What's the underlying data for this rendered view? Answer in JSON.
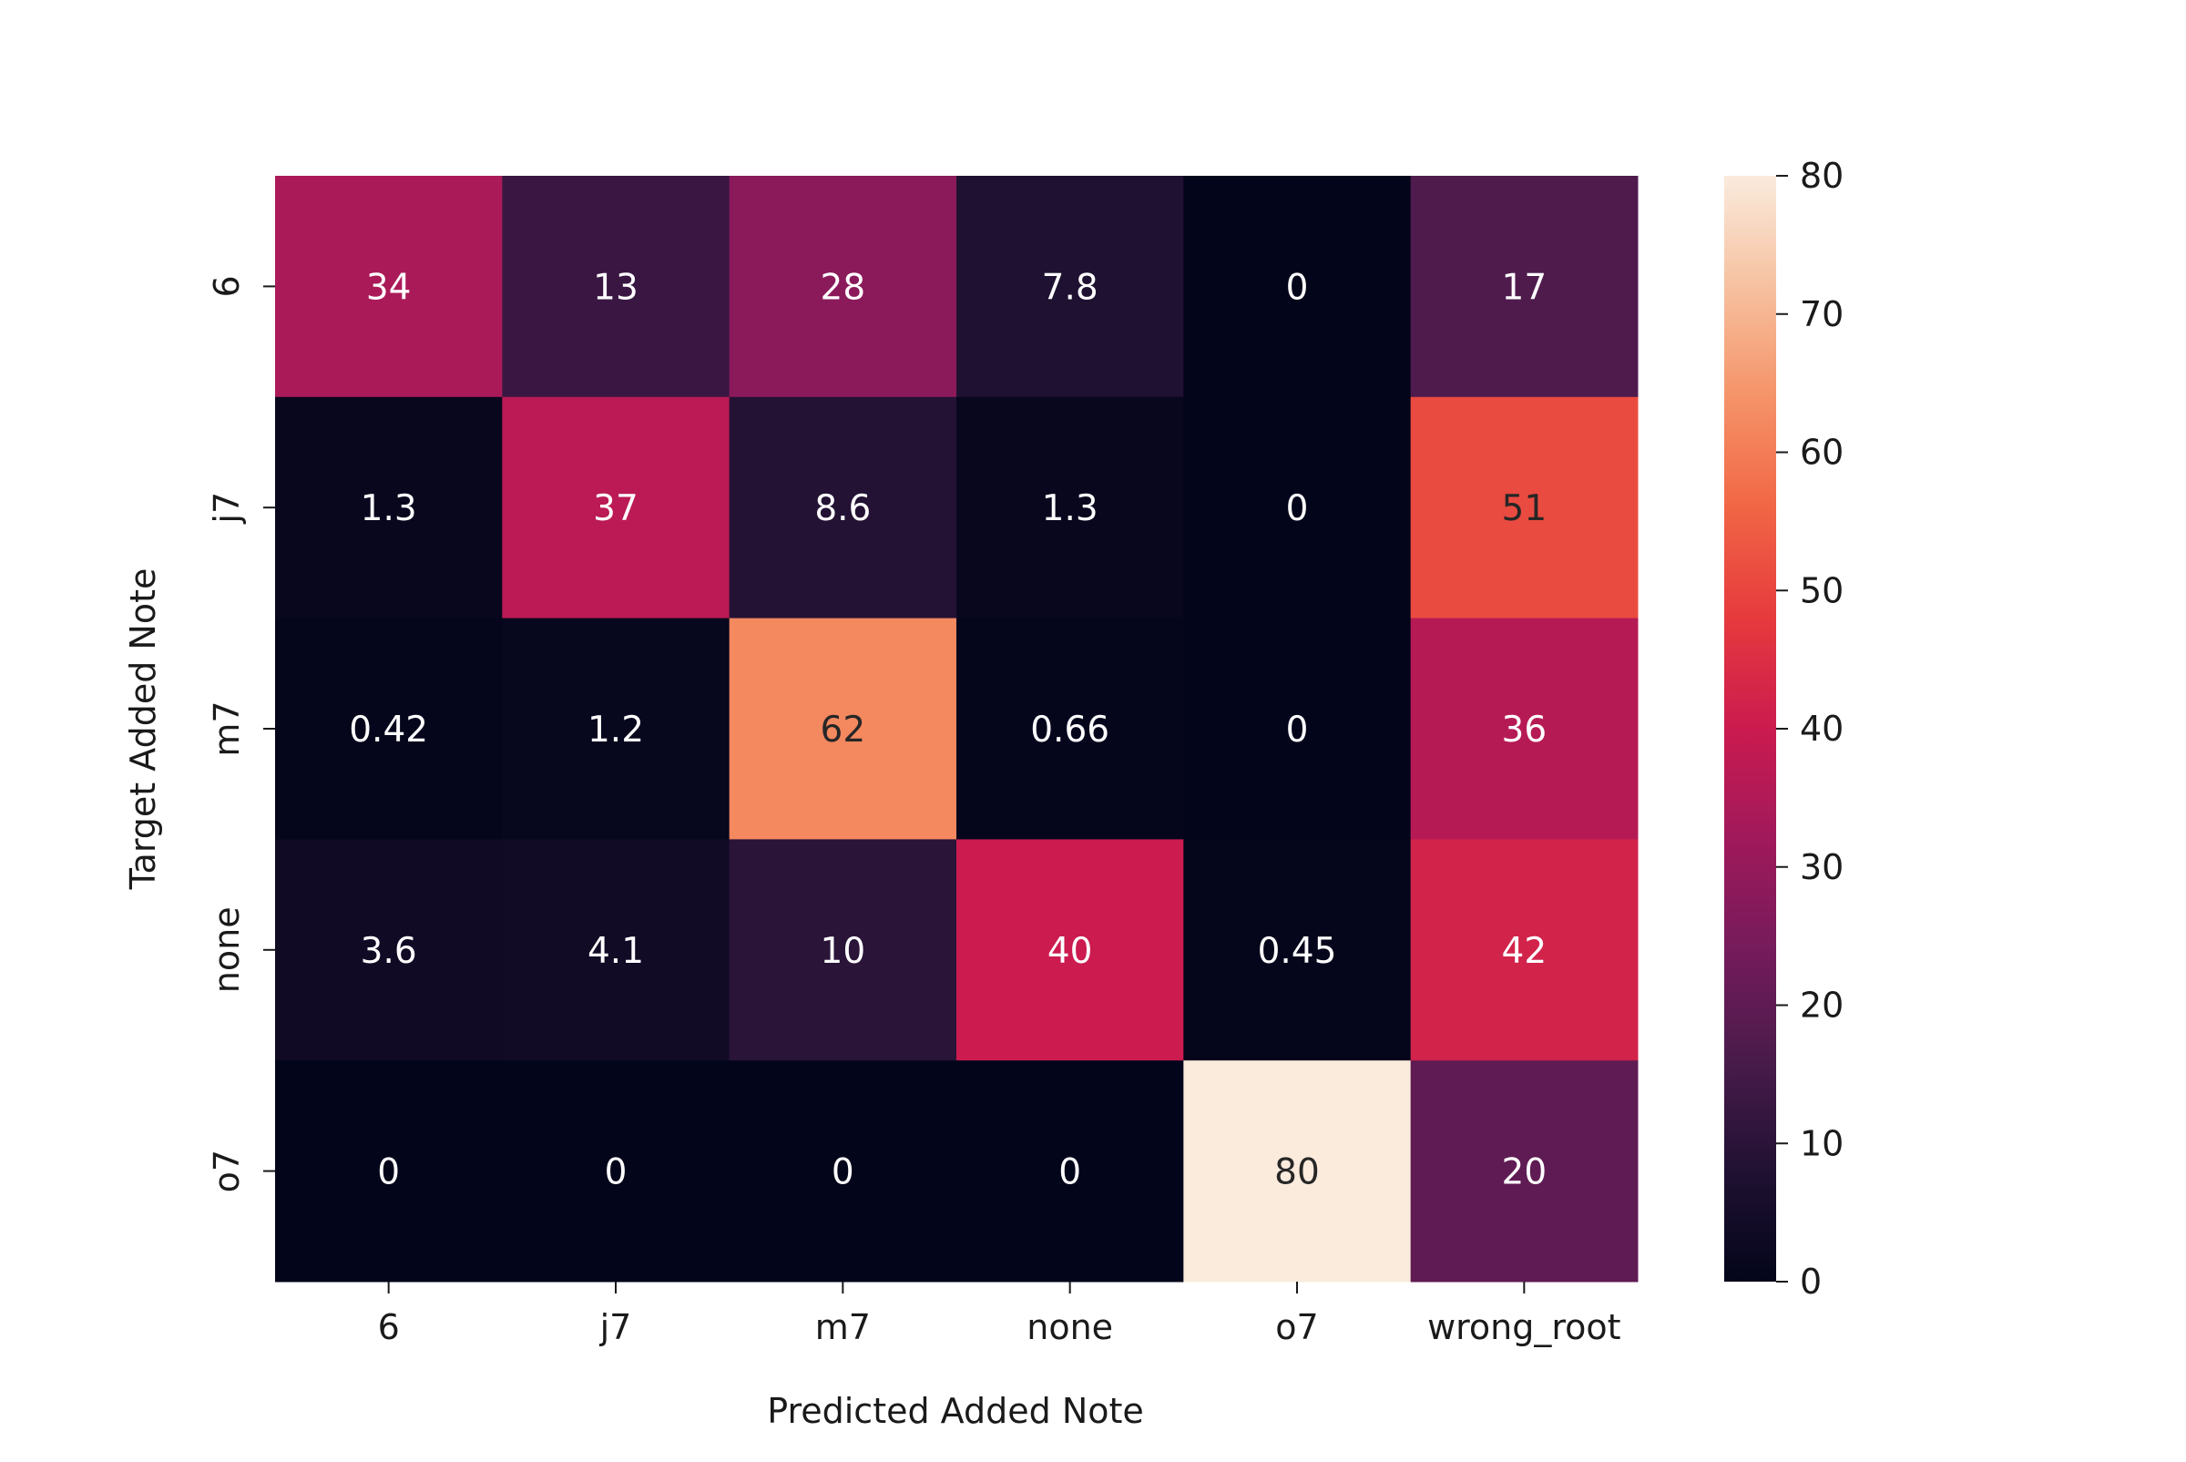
{
  "chart_data": {
    "type": "heatmap",
    "xlabel": "Predicted Added Note",
    "ylabel": "Target Added Note",
    "x_categories": [
      "6",
      "j7",
      "m7",
      "none",
      "o7",
      "wrong_root"
    ],
    "y_categories": [
      "6",
      "j7",
      "m7",
      "none",
      "o7"
    ],
    "values": [
      [
        34,
        13,
        28,
        7.8,
        0,
        17
      ],
      [
        1.3,
        37,
        8.6,
        1.3,
        0,
        51
      ],
      [
        0.42,
        1.2,
        62,
        0.66,
        0,
        36
      ],
      [
        3.6,
        4.1,
        10,
        40,
        0.45,
        42
      ],
      [
        0,
        0,
        0,
        0,
        80,
        20
      ]
    ],
    "annotations": [
      [
        "34",
        "13",
        "28",
        "7.8",
        "0",
        "17"
      ],
      [
        "1.3",
        "37",
        "8.6",
        "1.3",
        "0",
        "51"
      ],
      [
        "0.42",
        "1.2",
        "62",
        "0.66",
        "0",
        "36"
      ],
      [
        "3.6",
        "4.1",
        "10",
        "40",
        "0.45",
        "42"
      ],
      [
        "0",
        "0",
        "0",
        "0",
        "80",
        "20"
      ]
    ],
    "colorbar": {
      "min": 0,
      "max": 80,
      "ticks": [
        0,
        10,
        20,
        30,
        40,
        50,
        60,
        70,
        80
      ],
      "tick_labels": [
        "0",
        "10",
        "20",
        "30",
        "40",
        "50",
        "60",
        "70",
        "80"
      ],
      "colormap": "rocket"
    },
    "grid": false,
    "legend": "colorbar-right"
  }
}
